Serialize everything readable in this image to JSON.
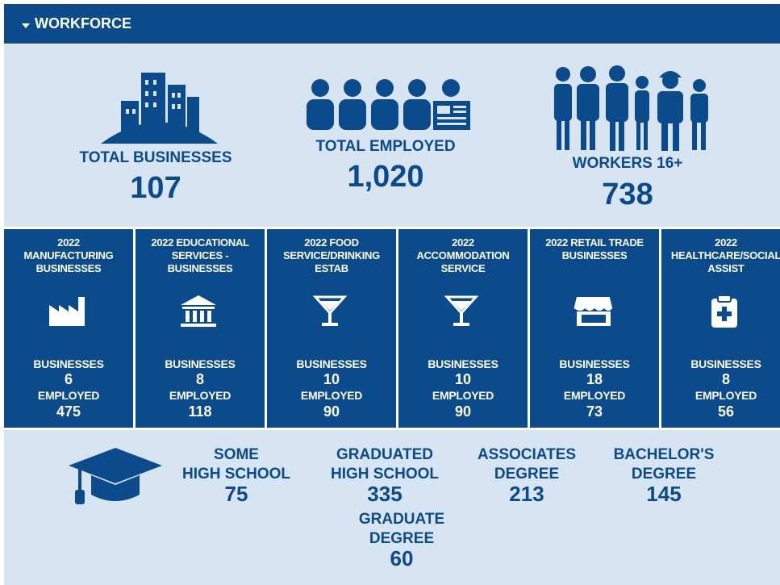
{
  "header": {
    "title": "WORKFORCE"
  },
  "summary": [
    {
      "label": "TOTAL BUSINESSES",
      "value": "107"
    },
    {
      "label": "TOTAL EMPLOYED",
      "value": "1,020"
    },
    {
      "label": "WORKERS 16+",
      "value": "738"
    }
  ],
  "sectors": [
    {
      "title_lines": [
        "2022",
        "MANUFACTURING",
        "BUSINESSES"
      ],
      "businesses_label": "BUSINESSES",
      "businesses": "6",
      "employed_label": "EMPLOYED",
      "employed": "475"
    },
    {
      "title_lines": [
        "2022 EDUCATIONAL",
        "SERVICES -",
        "BUSINESSES"
      ],
      "businesses_label": "BUSINESSES",
      "businesses": "8",
      "employed_label": "EMPLOYED",
      "employed": "118"
    },
    {
      "title_lines": [
        "2022 FOOD",
        "SERVICE/DRINKING",
        "ESTAB"
      ],
      "businesses_label": "BUSINESSES",
      "businesses": "10",
      "employed_label": "EMPLOYED",
      "employed": "90"
    },
    {
      "title_lines": [
        "2022",
        "ACCOMMODATION",
        "SERVICE"
      ],
      "businesses_label": "BUSINESSES",
      "businesses": "10",
      "employed_label": "EMPLOYED",
      "employed": "90"
    },
    {
      "title_lines": [
        "2022 RETAIL TRADE",
        "BUSINESSES"
      ],
      "businesses_label": "BUSINESSES",
      "businesses": "18",
      "employed_label": "EMPLOYED",
      "employed": "73"
    },
    {
      "title_lines": [
        "2022",
        "HEALTHCARE/SOCIAL",
        "ASSIST"
      ],
      "businesses_label": "BUSINESSES",
      "businesses": "8",
      "employed_label": "EMPLOYED",
      "employed": "56"
    }
  ],
  "education": [
    {
      "lines": [
        "SOME",
        "HIGH SCHOOL"
      ],
      "value": "75"
    },
    {
      "lines": [
        "GRADUATED",
        "HIGH SCHOOL"
      ],
      "value": "335"
    },
    {
      "lines": [
        "ASSOCIATES",
        "DEGREE"
      ],
      "value": "213"
    },
    {
      "lines": [
        "BACHELOR'S",
        "DEGREE"
      ],
      "value": "145"
    },
    {
      "lines": [
        "GRADUATE",
        "DEGREE"
      ],
      "value": "60"
    }
  ]
}
